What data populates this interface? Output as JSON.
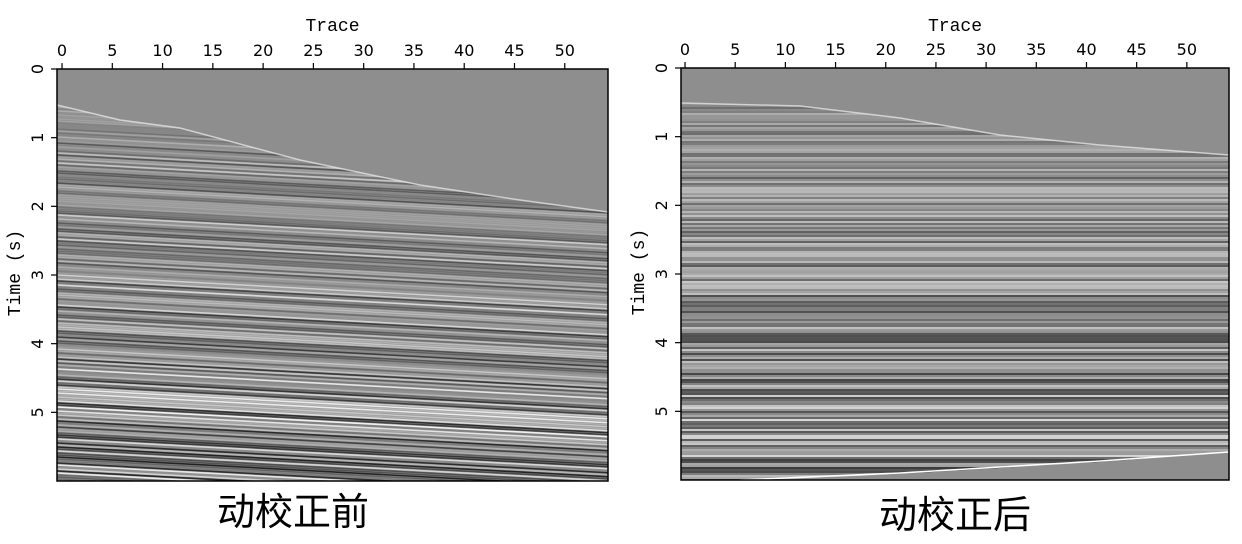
{
  "chart_data": [
    {
      "type": "seismic",
      "x_label": "Trace",
      "y_label": "Time (s)",
      "caption": "动校正前",
      "xlim": [
        -0.5,
        54.3
      ],
      "xticks": [
        0,
        5,
        10,
        15,
        20,
        25,
        30,
        35,
        40,
        45,
        50
      ],
      "ylim": [
        0,
        6
      ],
      "yticks": [
        0,
        1,
        2,
        3,
        4,
        5
      ]
    },
    {
      "type": "seismic",
      "x_label": "Trace",
      "y_label": "Time (s)",
      "caption": "动校正后",
      "xlim": [
        -0.4,
        54.2
      ],
      "xticks": [
        0,
        5,
        10,
        15,
        20,
        25,
        30,
        35,
        40,
        45,
        50
      ],
      "ylim": [
        0,
        6
      ],
      "yticks": [
        0,
        1,
        2,
        3,
        4,
        5
      ]
    }
  ]
}
